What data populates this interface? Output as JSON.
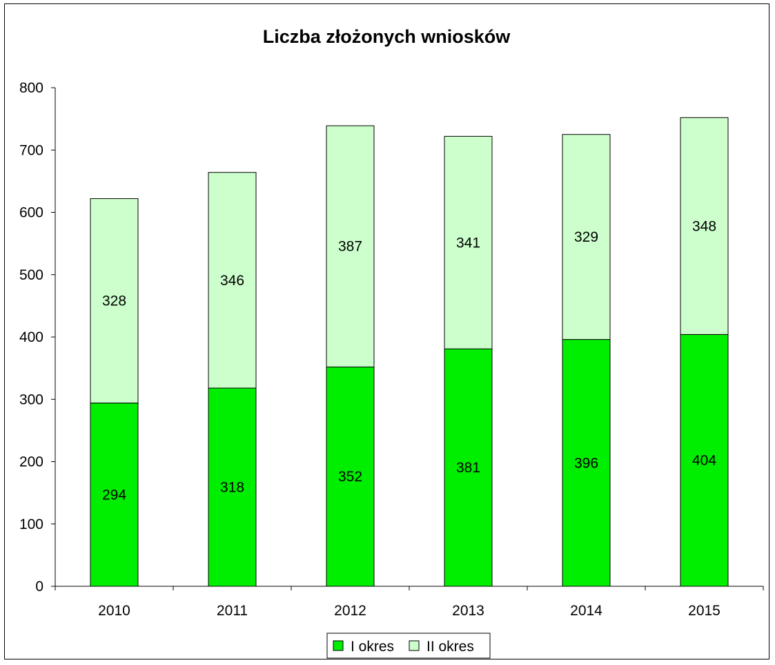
{
  "chart_data": {
    "type": "bar",
    "stacked": true,
    "title": "Liczba złożonych wniosków",
    "xlabel": "",
    "ylabel": "",
    "categories": [
      "2010",
      "2011",
      "2012",
      "2013",
      "2014",
      "2015"
    ],
    "series": [
      {
        "name": "I okres",
        "values": [
          294,
          318,
          352,
          381,
          396,
          404
        ],
        "color": "#00ee00"
      },
      {
        "name": "II okres",
        "values": [
          328,
          346,
          387,
          341,
          329,
          348
        ],
        "color": "#ccffcc"
      }
    ],
    "ylim": [
      0,
      800
    ],
    "yticks": [
      0,
      100,
      200,
      300,
      400,
      500,
      600,
      700,
      800
    ],
    "grid": false,
    "legend": "bottom-center",
    "data_labels": true
  }
}
